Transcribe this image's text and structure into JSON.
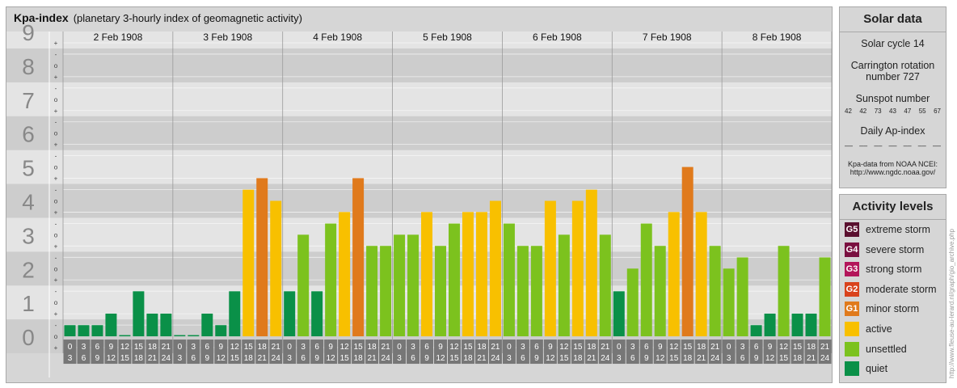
{
  "header": {
    "title": "Kpa-index",
    "subtitle": "(planetary 3-hourly index of geomagnetic activity)"
  },
  "chart_data": {
    "type": "bar",
    "ylim": [
      0,
      9
    ],
    "y_ticks": [
      "0",
      "1",
      "2",
      "3",
      "4",
      "5",
      "6",
      "7",
      "8",
      "9"
    ],
    "minor_ticks": [
      "+",
      "o",
      "-"
    ],
    "days": [
      "2 Feb 1908",
      "3 Feb 1908",
      "4 Feb 1908",
      "5 Feb 1908",
      "6 Feb 1908",
      "7 Feb 1908",
      "8 Feb 1908"
    ],
    "hour_starts": [
      "0",
      "3",
      "6",
      "9",
      "12",
      "15",
      "18",
      "21"
    ],
    "hour_ends": [
      "3",
      "6",
      "9",
      "12",
      "15",
      "18",
      "21",
      "24"
    ],
    "values": [
      0.33,
      0.33,
      0.33,
      0.67,
      0.0,
      1.33,
      0.67,
      0.67,
      0.0,
      0.0,
      0.67,
      0.33,
      1.33,
      4.33,
      4.67,
      4.0,
      1.33,
      3.0,
      1.33,
      3.33,
      3.67,
      4.67,
      2.67,
      2.67,
      3.0,
      3.0,
      3.67,
      2.67,
      3.33,
      3.67,
      3.67,
      4.0,
      3.33,
      2.67,
      2.67,
      4.0,
      3.0,
      4.0,
      4.33,
      3.0,
      1.33,
      2.0,
      3.33,
      2.67,
      3.67,
      5.0,
      3.67,
      2.67,
      2.0,
      2.33,
      0.33,
      0.67,
      2.67,
      0.67,
      0.67,
      2.33
    ],
    "colors": {
      "quiet": "#0a9048",
      "unsettled": "#7cc21e",
      "active": "#f8c000",
      "minor": "#e07a1c"
    }
  },
  "solar": {
    "title": "Solar data",
    "cycle": "Solar cycle 14",
    "carrington_line1": "Carrington rotation",
    "carrington_line2": "number 727",
    "sunspot_title": "Sunspot number",
    "sunspots": [
      "42",
      "42",
      "73",
      "43",
      "47",
      "55",
      "67"
    ],
    "ap_title": "Daily Ap-index",
    "ap_values": [
      "––",
      "––",
      "––",
      "––",
      "––",
      "––",
      "––"
    ],
    "source_line1": "Kpa-data from NOAA NCEI:",
    "source_line2": "http://www.ngdc.noaa.gov/"
  },
  "activity": {
    "title": "Activity levels",
    "items": [
      {
        "code": "G5",
        "label": "extreme storm",
        "color": "#5a0f2e"
      },
      {
        "code": "G4",
        "label": "severe storm",
        "color": "#7a1040"
      },
      {
        "code": "G3",
        "label": "strong storm",
        "color": "#b3155a"
      },
      {
        "code": "G2",
        "label": "moderate storm",
        "color": "#d9421c"
      },
      {
        "code": "G1",
        "label": "minor storm",
        "color": "#e07a1c"
      },
      {
        "code": "",
        "label": "active",
        "color": "#f8c000"
      },
      {
        "code": "",
        "label": "unsettled",
        "color": "#7cc21e"
      },
      {
        "code": "",
        "label": "quiet",
        "color": "#0a9048"
      }
    ]
  },
  "credit": "http://www.fleuse-au-lerard.nl/graph/gio_archive.php"
}
